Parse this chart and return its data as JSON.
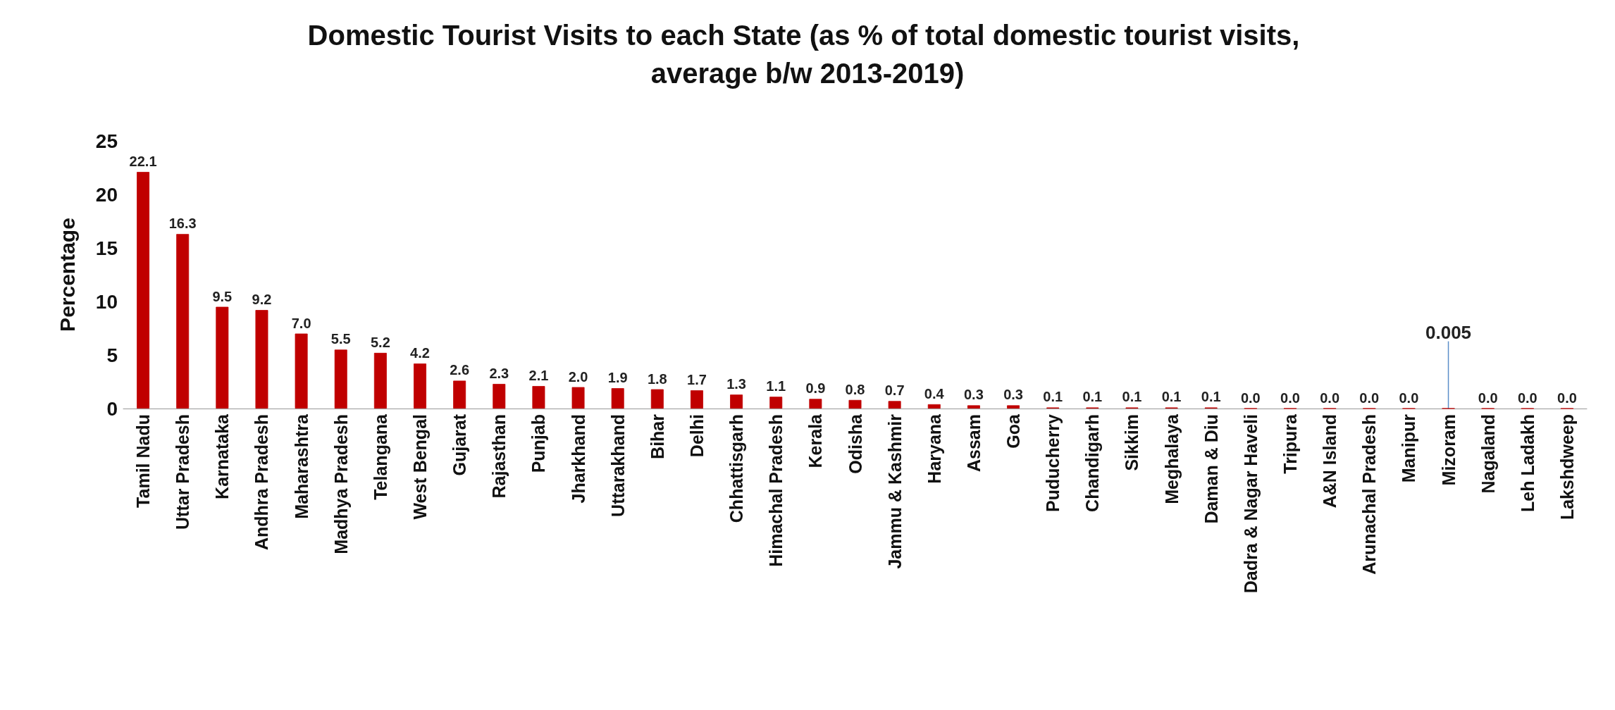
{
  "chart_data": {
    "type": "bar",
    "title": "Domestic Tourist Visits to each State (as % of total domestic tourist visits, average b/w 2013-2019)",
    "ylabel": "Percentage",
    "categories": [
      "Tamil Nadu",
      "Uttar Pradesh",
      "Karnataka",
      "Andhra Pradesh",
      "Maharashtra",
      "Madhya Pradesh",
      "Telangana",
      "West Bengal",
      "Gujarat",
      "Rajasthan",
      "Punjab",
      "Jharkhand",
      "Uttarakhand",
      "Bihar",
      "Delhi",
      "Chhattisgarh",
      "Himachal Pradesh",
      "Kerala",
      "Odisha",
      "Jammu & Kashmir",
      "Haryana",
      "Assam",
      "Goa",
      "Puducherry",
      "Chandigarh",
      "Sikkim",
      "Meghalaya",
      "Daman & Diu",
      "Dadra & Nagar Haveli",
      "Tripura",
      "A&N Island",
      "Arunachal Pradesh",
      "Manipur",
      "Mizoram",
      "Nagaland",
      "Leh Ladakh",
      "Lakshdweep"
    ],
    "values": [
      22.1,
      16.3,
      9.5,
      9.2,
      7.0,
      5.5,
      5.2,
      4.2,
      2.6,
      2.3,
      2.1,
      2.0,
      1.9,
      1.8,
      1.7,
      1.3,
      1.1,
      0.9,
      0.8,
      0.7,
      0.4,
      0.3,
      0.3,
      0.1,
      0.1,
      0.1,
      0.1,
      0.1,
      0.0,
      0.0,
      0.0,
      0.0,
      0.0,
      0.005,
      0.0,
      0.0,
      0.0
    ],
    "value_labels": [
      "22.1",
      "16.3",
      "9.5",
      "9.2",
      "7.0",
      "5.5",
      "5.2",
      "4.2",
      "2.6",
      "2.3",
      "2.1",
      "2.0",
      "1.9",
      "1.8",
      "1.7",
      "1.3",
      "1.1",
      "0.9",
      "0.8",
      "0.7",
      "0.4",
      "0.3",
      "0.3",
      "0.1",
      "0.1",
      "0.1",
      "0.1",
      "0.1",
      "0.0",
      "0.0",
      "0.0",
      "0.0",
      "0.0",
      "0.005",
      "0.0",
      "0.0",
      "0.0"
    ],
    "color": "#c00000",
    "ylim": [
      0,
      25
    ],
    "yticks": [
      0,
      5,
      10,
      15,
      20,
      25
    ],
    "grid": false
  }
}
